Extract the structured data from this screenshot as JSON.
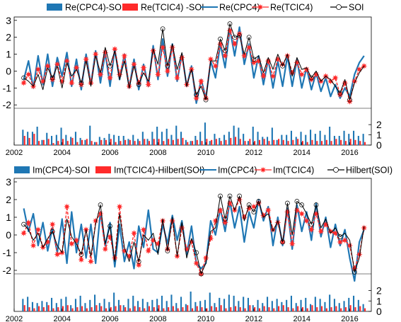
{
  "chart_data": [
    {
      "type": "line",
      "panel": "top",
      "legend": {
        "placement": "top",
        "entries": [
          {
            "label": "Re(CPC4)-SOI",
            "kind": "bar",
            "color": "#1f77b4"
          },
          {
            "label": "Re(TCIC4) -SOI",
            "kind": "bar",
            "color": "#ff2a2a"
          },
          {
            "label": "Re(CPC4)",
            "kind": "line",
            "color": "#1f77b4"
          },
          {
            "label": "Re(TCIC4)",
            "kind": "line-star",
            "color": "#ff2a2a"
          },
          {
            "label": "SOI",
            "kind": "line-circle",
            "color": "#000000"
          }
        ]
      },
      "xlim": [
        2002,
        2016.9
      ],
      "x_ticks": [
        "2002",
        "2004",
        "2006",
        "2008",
        "2010",
        "2012",
        "2014",
        "2016"
      ],
      "ylim": [
        -2.2,
        3.2
      ],
      "y_ticks": [
        "-2",
        "-1",
        "0",
        "1",
        "2",
        "3"
      ],
      "bar_ylim": [
        0,
        3.6
      ],
      "bar_ticks": [
        "0",
        "1",
        "2"
      ],
      "grid": false,
      "x": [
        2002.4,
        2002.6,
        2002.8,
        2003.0,
        2003.2,
        2003.4,
        2003.6,
        2003.8,
        2004.0,
        2004.2,
        2004.4,
        2004.6,
        2004.8,
        2005.0,
        2005.2,
        2005.4,
        2005.6,
        2005.8,
        2006.0,
        2006.2,
        2006.4,
        2006.6,
        2006.8,
        2007.0,
        2007.2,
        2007.4,
        2007.6,
        2007.8,
        2008.0,
        2008.2,
        2008.4,
        2008.6,
        2008.8,
        2009.0,
        2009.2,
        2009.4,
        2009.6,
        2009.8,
        2010.0,
        2010.2,
        2010.4,
        2010.6,
        2010.8,
        2011.0,
        2011.2,
        2011.4,
        2011.6,
        2011.8,
        2012.0,
        2012.2,
        2012.4,
        2012.6,
        2012.8,
        2013.0,
        2013.2,
        2013.4,
        2013.6,
        2013.8,
        2014.0,
        2014.2,
        2014.4,
        2014.6,
        2014.8,
        2015.0,
        2015.2,
        2015.4,
        2015.6,
        2015.8,
        2016.0,
        2016.2,
        2016.4,
        2016.6
      ],
      "series": [
        {
          "name": "Re(CPC4)",
          "style": "line",
          "color": "#1f77b4",
          "values": [
            -0.5,
            0.6,
            -1.0,
            0.9,
            -0.8,
            1.0,
            -0.9,
            0.8,
            -0.3,
            1.1,
            -0.9,
            0.7,
            -1.1,
            1.0,
            -0.8,
            1.2,
            -0.7,
            1.1,
            -0.9,
            1.3,
            -0.5,
            1.0,
            -1.0,
            0.7,
            -1.1,
            0.4,
            -0.9,
            1.5,
            -0.5,
            1.9,
            -0.3,
            1.6,
            -0.6,
            1.0,
            -0.9,
            0.3,
            -1.9,
            -0.5,
            -1.6,
            0.6,
            -0.4,
            1.6,
            0.2,
            2.5,
            0.9,
            2.6,
            0.4,
            1.6,
            -0.4,
            0.9,
            -0.8,
            0.7,
            -1.0,
            0.6,
            -0.9,
            0.9,
            -0.9,
            0.7,
            -1.0,
            0.2,
            -1.1,
            -0.1,
            -1.2,
            -0.4,
            -1.5,
            -0.8,
            -1.6,
            -1.0,
            -1.5,
            -0.2,
            0.5,
            0.9
          ]
        },
        {
          "name": "Re(TCIC4)",
          "style": "line-star",
          "color": "#ff2a2a",
          "values": [
            -0.7,
            -0.2,
            -0.9,
            0.1,
            -0.6,
            0.3,
            -0.5,
            0.4,
            -0.6,
            0.6,
            -0.7,
            0.2,
            -0.8,
            0.7,
            -0.7,
            1.0,
            -0.2,
            1.1,
            -0.4,
            1.3,
            -0.2,
            0.9,
            -0.9,
            0.4,
            -0.7,
            0.2,
            -0.8,
            1.2,
            -0.2,
            1.4,
            0.0,
            1.4,
            -0.4,
            0.8,
            -0.8,
            0.1,
            -1.6,
            -0.6,
            -1.6,
            0.7,
            0.3,
            1.6,
            0.9,
            2.4,
            1.6,
            2.2,
            0.9,
            1.4,
            0.5,
            0.6,
            -0.3,
            0.6,
            -0.3,
            0.7,
            0.4,
            0.9,
            -0.1,
            0.5,
            -0.2,
            0.1,
            -0.5,
            -0.2,
            -0.6,
            -0.3,
            -0.6,
            -0.4,
            -1.4,
            -0.7,
            -1.8,
            -0.6,
            0.1,
            0.3
          ]
        },
        {
          "name": "SOI",
          "style": "line-circle",
          "color": "#000000",
          "values": [
            -0.4,
            -0.6,
            -0.9,
            -0.2,
            -1.1,
            0.2,
            -0.4,
            0.3,
            -1.0,
            0.5,
            -0.3,
            0.1,
            -0.7,
            0.6,
            -0.9,
            0.9,
            -0.1,
            1.4,
            0.3,
            1.2,
            -0.5,
            0.6,
            -1.0,
            0.3,
            -0.8,
            -0.1,
            -0.6,
            1.3,
            0.4,
            2.5,
            0.3,
            1.6,
            0.1,
            1.1,
            -0.9,
            0.1,
            -1.4,
            -0.9,
            -1.7,
            0.6,
            0.6,
            1.9,
            1.2,
            2.8,
            2.0,
            2.1,
            1.0,
            2.0,
            0.7,
            0.9,
            -0.1,
            0.8,
            0.1,
            1.0,
            0.3,
            1.0,
            -0.3,
            0.8,
            0.1,
            0.2,
            -0.4,
            0.0,
            -0.6,
            -0.3,
            -0.5,
            -0.9,
            -1.3,
            -0.5,
            -1.7,
            -0.7,
            -0.1,
            0.3
          ]
        },
        {
          "name": "Re(CPC4)-SOI",
          "style": "bar",
          "color": "#1f77b4",
          "axis": "bar",
          "values": [
            1.5,
            1.3,
            1.3,
            1.8,
            0.5,
            1.2,
            0.9,
            1.0,
            1.7,
            1.0,
            0.8,
            1.3,
            0.7,
            0.5,
            1.9,
            0.3,
            0.8,
            0.7,
            1.1,
            1.0,
            0.9,
            0.9,
            0.6,
            1.0,
            0.6,
            1.3,
            0.6,
            1.3,
            1.8,
            1.3,
            1.6,
            1.0,
            1.9,
            1.3,
            0.5,
            0.4,
            0.9,
            1.3,
            2.2,
            0.4,
            1.1,
            0.7,
            1.0,
            1.3,
            1.9,
            1.7,
            1.1,
            0.4,
            1.8,
            1.3,
            0.8,
            0.8,
            1.7,
            0.5,
            1.0,
            1.0,
            1.4,
            0.8,
            1.3,
            1.0,
            1.5,
            1.1,
            1.4,
            1.0,
            1.8,
            0.9,
            0.9,
            1.4,
            1.1,
            1.4,
            0.9,
            1.1
          ]
        },
        {
          "name": "Re(TCIC4) -SOI",
          "style": "bar",
          "color": "#ff2a2a",
          "axis": "bar",
          "values": [
            0.9,
            0.7,
            1.1,
            0.4,
            0.5,
            0.6,
            0.2,
            0.4,
            0.6,
            0.4,
            0.7,
            0.3,
            0.5,
            0.6,
            0.4,
            0.3,
            0.5,
            0.5,
            0.6,
            0.3,
            0.4,
            0.5,
            0.5,
            0.4,
            0.4,
            0.6,
            0.4,
            0.6,
            0.6,
            0.4,
            0.6,
            0.5,
            0.6,
            0.7,
            0.3,
            0.4,
            0.5,
            0.4,
            0.6,
            0.5,
            0.6,
            0.4,
            0.5,
            0.7,
            0.8,
            0.6,
            0.4,
            0.6,
            0.4,
            0.5,
            0.6,
            0.4,
            0.5,
            0.6,
            0.5,
            0.4,
            0.5,
            0.6,
            0.4,
            0.3,
            0.5,
            0.4,
            0.4,
            0.5,
            0.4,
            0.6,
            0.5,
            0.4,
            0.6,
            0.5,
            0.4,
            0.3
          ]
        }
      ]
    },
    {
      "type": "line",
      "panel": "bottom",
      "legend": {
        "placement": "top",
        "entries": [
          {
            "label": "Im(CPC4)-SOI",
            "kind": "bar",
            "color": "#1f77b4"
          },
          {
            "label": "Im(TCIC4)-Hilbert(SOI)",
            "kind": "bar",
            "color": "#ff2a2a"
          },
          {
            "label": "Im(CPC4)",
            "kind": "line",
            "color": "#1f77b4"
          },
          {
            "label": "Im(TCIC4)",
            "kind": "line-star",
            "color": "#ff2a2a"
          },
          {
            "label": "Hilbert(SOI)",
            "kind": "line-circle",
            "color": "#000000"
          }
        ]
      },
      "xlim": [
        2002,
        2016.9
      ],
      "x_ticks": [
        "2002",
        "2004",
        "2006",
        "2008",
        "2010",
        "2012",
        "2014",
        "2016"
      ],
      "ylim": [
        -2.2,
        3.2
      ],
      "y_ticks": [
        "-2",
        "-1",
        "0",
        "1",
        "2",
        "3"
      ],
      "bar_ylim": [
        0,
        3.6
      ],
      "bar_ticks": [
        "0",
        "1",
        "2"
      ],
      "grid": false,
      "x": [
        2002.4,
        2002.6,
        2002.8,
        2003.0,
        2003.2,
        2003.4,
        2003.6,
        2003.8,
        2004.0,
        2004.2,
        2004.4,
        2004.6,
        2004.8,
        2005.0,
        2005.2,
        2005.4,
        2005.6,
        2005.8,
        2006.0,
        2006.2,
        2006.4,
        2006.6,
        2006.8,
        2007.0,
        2007.2,
        2007.4,
        2007.6,
        2007.8,
        2008.0,
        2008.2,
        2008.4,
        2008.6,
        2008.8,
        2009.0,
        2009.2,
        2009.4,
        2009.6,
        2009.8,
        2010.0,
        2010.2,
        2010.4,
        2010.6,
        2010.8,
        2011.0,
        2011.2,
        2011.4,
        2011.6,
        2011.8,
        2012.0,
        2012.2,
        2012.4,
        2012.6,
        2012.8,
        2013.0,
        2013.2,
        2013.4,
        2013.6,
        2013.8,
        2014.0,
        2014.2,
        2014.4,
        2014.6,
        2014.8,
        2015.0,
        2015.2,
        2015.4,
        2015.6,
        2015.8,
        2016.0,
        2016.2,
        2016.4,
        2016.6
      ],
      "series": [
        {
          "name": "Im(CPC4)",
          "style": "line",
          "color": "#1f77b4",
          "values": [
            1.5,
            0.2,
            1.2,
            -0.6,
            0.7,
            -0.9,
            0.4,
            -1.0,
            0.9,
            -1.6,
            1.3,
            -1.0,
            0.6,
            -1.3,
            0.6,
            -1.6,
            1.3,
            -0.6,
            0.7,
            -1.8,
            0.6,
            -1.5,
            -0.4,
            -1.9,
            0.5,
            -0.7,
            1.4,
            -0.8,
            -1.0,
            0.6,
            -0.5,
            1.1,
            -0.3,
            0.8,
            -1.1,
            0.5,
            -1.6,
            -1.9,
            -1.6,
            0.8,
            0.0,
            1.5,
            0.2,
            1.9,
            0.4,
            1.6,
            -0.4,
            1.3,
            0.4,
            2.0,
            0.8,
            1.6,
            -0.6,
            1.0,
            -0.6,
            1.5,
            -0.8,
            1.7,
            0.2,
            1.3,
            -0.3,
            1.8,
            -0.1,
            1.0,
            -0.7,
            0.6,
            -0.6,
            0.3,
            -1.3,
            -2.6,
            -0.4,
            0.3
          ]
        },
        {
          "name": "Im(TCIC4)",
          "style": "line-star",
          "color": "#ff2a2a",
          "values": [
            0.1,
            0.7,
            -0.6,
            0.3,
            -0.7,
            -0.4,
            0.6,
            -1.1,
            -1.0,
            1.6,
            -0.5,
            -0.3,
            -1.4,
            0.3,
            -1.5,
            0.8,
            1.2,
            -0.8,
            -0.1,
            -1.3,
            1.6,
            -0.9,
            -1.2,
            0.1,
            -1.7,
            0.3,
            -0.9,
            -0.3,
            -0.5,
            0.8,
            -0.8,
            0.8,
            -1.2,
            0.4,
            -0.8,
            -0.4,
            -1.6,
            -2.2,
            -1.3,
            -0.2,
            0.8,
            1.4,
            0.7,
            1.8,
            1.4,
            2.0,
            1.0,
            1.5,
            1.6,
            1.8,
            1.1,
            1.4,
            0.3,
            0.7,
            -0.4,
            1.3,
            -0.5,
            1.4,
            1.2,
            0.8,
            0.3,
            1.2,
            0.2,
            0.6,
            0.2,
            0.1,
            -0.4,
            -0.3,
            -0.6,
            -1.9,
            -1.1,
            0.4
          ]
        },
        {
          "name": "Hilbert(SOI)",
          "style": "line-circle",
          "color": "#000000",
          "values": [
            0.6,
            0.3,
            -0.3,
            0.1,
            -0.7,
            -0.2,
            0.2,
            -0.6,
            -1.0,
            0.9,
            -0.1,
            -0.5,
            -1.1,
            0.3,
            -1.2,
            0.6,
            1.7,
            -0.5,
            0.5,
            -1.5,
            1.2,
            -0.7,
            -1.5,
            -0.4,
            -1.5,
            0.0,
            -0.3,
            0.1,
            -1.1,
            0.9,
            -0.9,
            1.0,
            -1.2,
            0.7,
            -1.3,
            -0.2,
            -1.0,
            -2.2,
            -1.6,
            0.2,
            0.4,
            2.2,
            0.9,
            2.2,
            1.4,
            2.2,
            0.8,
            1.7,
            1.3,
            1.9,
            1.0,
            1.2,
            0.2,
            0.8,
            -0.4,
            1.8,
            0.0,
            1.9,
            1.7,
            1.2,
            0.6,
            1.7,
            0.4,
            0.9,
            0.1,
            0.4,
            -0.1,
            0.1,
            -0.3,
            -2.1,
            -1.3,
            0.5
          ]
        },
        {
          "name": "Im(CPC4)-SOI",
          "style": "bar",
          "color": "#1f77b4",
          "axis": "bar",
          "values": [
            1.2,
            1.4,
            0.9,
            0.8,
            1.0,
            0.9,
            1.3,
            0.8,
            1.2,
            1.4,
            0.6,
            1.2,
            1.5,
            0.8,
            1.1,
            1.6,
            0.8,
            1.2,
            0.9,
            1.8,
            1.1,
            0.6,
            1.2,
            1.5,
            1.0,
            1.2,
            0.9,
            1.1,
            1.2,
            1.5,
            1.0,
            1.6,
            0.8,
            1.4,
            0.7,
            1.9,
            0.9,
            1.0,
            1.1,
            1.8,
            0.8,
            1.3,
            1.2,
            1.6,
            1.5,
            1.0,
            1.4,
            1.3,
            0.6,
            1.1,
            0.8,
            1.4,
            1.0,
            1.2,
            0.9,
            1.1,
            1.5,
            0.8,
            1.1,
            1.3,
            0.7,
            1.4,
            1.2,
            0.9,
            1.6,
            1.2,
            0.8,
            1.0,
            1.3,
            1.5,
            1.1,
            0.7
          ]
        },
        {
          "name": "Im(TCIC4)-Hilbert(SOI)",
          "style": "bar",
          "color": "#ff2a2a",
          "axis": "bar",
          "values": [
            0.6,
            0.4,
            0.3,
            0.5,
            0.4,
            0.6,
            0.3,
            0.4,
            0.5,
            0.6,
            0.3,
            0.4,
            0.5,
            0.3,
            0.4,
            0.6,
            0.5,
            0.3,
            0.4,
            0.5,
            0.6,
            0.4,
            0.3,
            0.5,
            0.4,
            0.3,
            0.5,
            0.4,
            0.6,
            0.3,
            0.4,
            0.5,
            0.3,
            0.4,
            0.6,
            0.3,
            0.5,
            0.4,
            0.3,
            0.5,
            0.4,
            0.6,
            0.3,
            0.4,
            0.5,
            0.4,
            0.3,
            0.6,
            0.4,
            0.3,
            0.5,
            0.4,
            0.3,
            0.5,
            0.6,
            0.4,
            0.3,
            0.5,
            0.4,
            0.3,
            0.6,
            0.4,
            0.5,
            0.3,
            0.4,
            0.5,
            0.3,
            0.4,
            0.6,
            0.4,
            0.5,
            0.3
          ]
        }
      ]
    }
  ]
}
